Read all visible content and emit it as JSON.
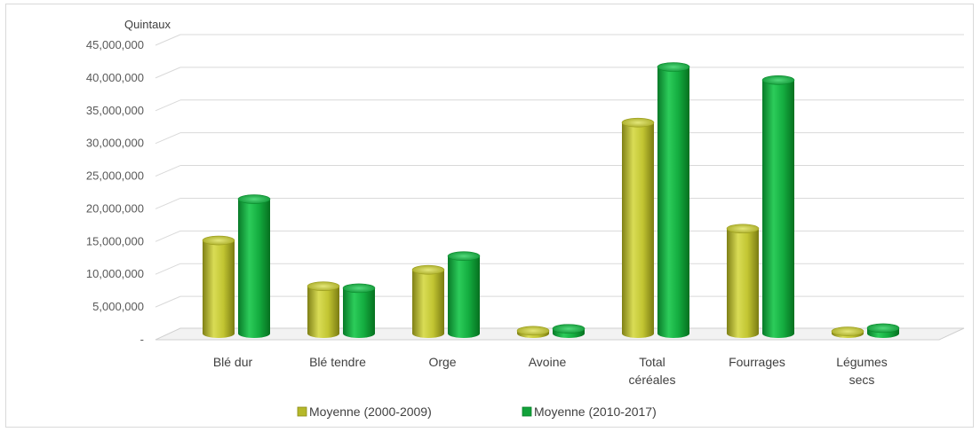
{
  "chart_data": {
    "type": "bar",
    "y_unit_label": "Quintaux",
    "categories": [
      [
        "Blé dur"
      ],
      [
        "Blé tendre"
      ],
      [
        "Orge"
      ],
      [
        "Avoine"
      ],
      [
        "Total",
        "céréales"
      ],
      [
        "Fourrages"
      ],
      [
        "Légumes",
        "secs"
      ]
    ],
    "series": [
      {
        "name": "Moyenne (2000-2009)",
        "color": "#b5b82a",
        "values": [
          14500000,
          7500000,
          10000000,
          700000,
          32500000,
          16300000,
          600000
        ]
      },
      {
        "name": "Moyenne (2010-2017)",
        "color": "#12a23a",
        "values": [
          20800000,
          7200000,
          12100000,
          1000000,
          41000000,
          39000000,
          1100000
        ]
      }
    ],
    "y_ticks": [
      {
        "value": 0,
        "label": "-"
      },
      {
        "value": 5000000,
        "label": "5,000,000"
      },
      {
        "value": 10000000,
        "label": "10,000,000"
      },
      {
        "value": 15000000,
        "label": "15,000,000"
      },
      {
        "value": 20000000,
        "label": "20,000,000"
      },
      {
        "value": 25000000,
        "label": "25,000,000"
      },
      {
        "value": 30000000,
        "label": "30,000,000"
      },
      {
        "value": 35000000,
        "label": "35,000,000"
      },
      {
        "value": 40000000,
        "label": "40,000,000"
      },
      {
        "value": 45000000,
        "label": "45,000,000"
      }
    ],
    "ylim": [
      0,
      45000000
    ],
    "grid": true,
    "legend_position": "bottom",
    "style": "3d-cylinder"
  }
}
